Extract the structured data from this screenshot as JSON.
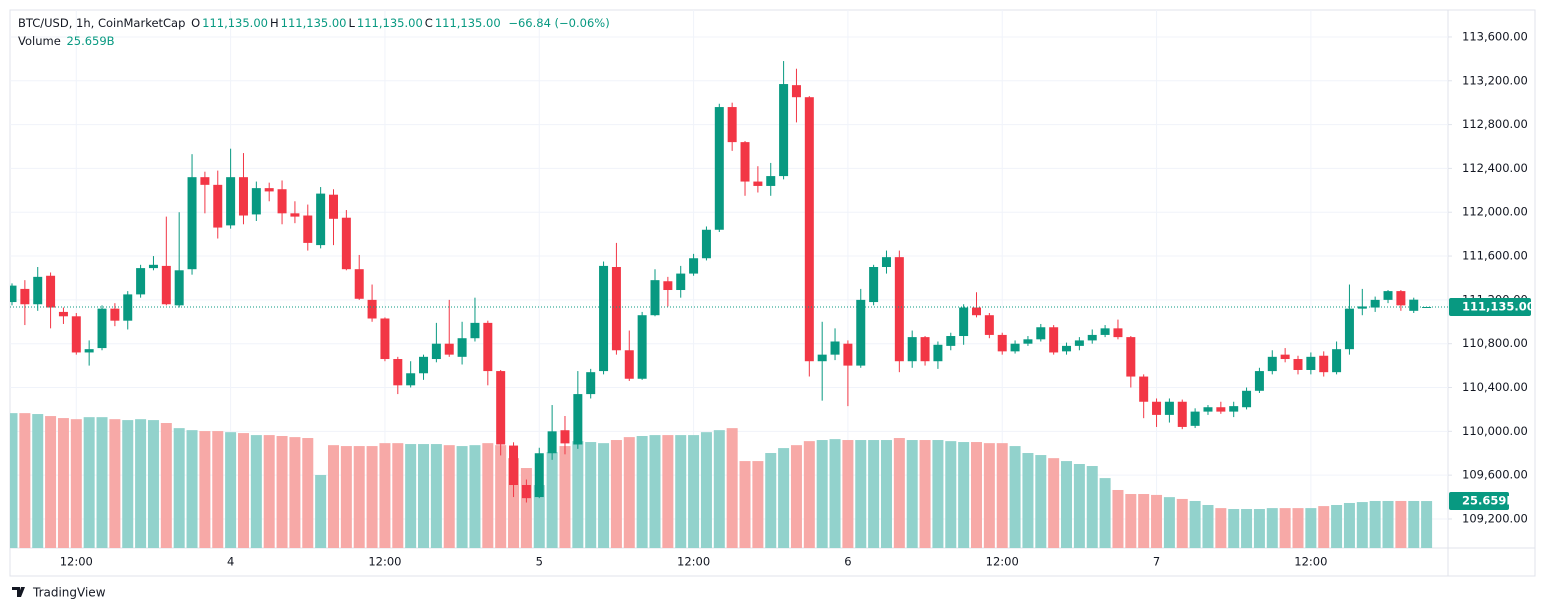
{
  "chart_data": {
    "type": "candlestick",
    "title": "BTC/USD, 1h, CoinMarketCap",
    "ohlc_legend": [
      {
        "key": "O",
        "label": "111,135.00"
      },
      {
        "key": "H",
        "label": "111,135.00"
      },
      {
        "key": "L",
        "label": "111,135.00"
      },
      {
        "key": "C",
        "label": "111,135.00"
      }
    ],
    "change_label": "−66.84 (−0.06%)",
    "categories": [
      null,
      null,
      null,
      null,
      null,
      "12:00",
      null,
      null,
      null,
      null,
      null,
      null,
      null,
      null,
      null,
      null,
      null,
      "4",
      null,
      null,
      null,
      null,
      null,
      null,
      null,
      null,
      null,
      null,
      null,
      "12:00",
      null,
      null,
      null,
      null,
      null,
      null,
      null,
      null,
      null,
      null,
      null,
      "5",
      null,
      null,
      null,
      null,
      null,
      null,
      null,
      null,
      null,
      null,
      null,
      "12:00",
      null,
      null,
      null,
      null,
      null,
      null,
      null,
      null,
      null,
      null,
      null,
      "6",
      null,
      null,
      null,
      null,
      null,
      null,
      null,
      null,
      null,
      null,
      null,
      "12:00",
      null,
      null,
      null,
      null,
      null,
      null,
      null,
      null,
      null,
      null,
      null,
      "7",
      null,
      null,
      null,
      null,
      null,
      null,
      null,
      null,
      null,
      null,
      null,
      "12:00",
      null,
      null,
      null,
      null,
      null,
      null,
      null,
      null,
      null
    ],
    "open": [
      111180,
      111300,
      111160,
      111420,
      111090,
      111050,
      110720,
      110760,
      111120,
      111010,
      111250,
      111490,
      111510,
      111150,
      111480,
      112320,
      112250,
      111880,
      112320,
      111980,
      112220,
      112210,
      111990,
      111970,
      111700,
      112160,
      111950,
      111480,
      111200,
      111030,
      110660,
      110420,
      110530,
      110660,
      110800,
      110680,
      110850,
      110990,
      110550,
      109870,
      109510,
      109400,
      109800,
      110010,
      109880,
      110340,
      110550,
      111500,
      110740,
      110480,
      111060,
      111370,
      111290,
      111440,
      111580,
      111840,
      112960,
      112640,
      112280,
      112240,
      112330,
      113160,
      113050,
      110640,
      110700,
      110800,
      110600,
      111180,
      111500,
      111590,
      110640,
      110860,
      110640,
      110780,
      110870,
      111130,
      111060,
      110880,
      110730,
      110800,
      110840,
      110950,
      110730,
      110780,
      110830,
      110880,
      110940,
      110860,
      110500,
      110270,
      110150,
      110270,
      110050,
      110180,
      110220,
      110180,
      110220,
      110370,
      110550,
      110700,
      110660,
      110560,
      110690,
      110540,
      110750,
      111120,
      111130,
      111200,
      111280,
      111100,
      111135
    ],
    "high": [
      111350,
      111380,
      111500,
      111450,
      111130,
      111080,
      110830,
      111150,
      111170,
      111280,
      111520,
      111600,
      111960,
      112000,
      112530,
      112370,
      112380,
      112580,
      112540,
      112280,
      112270,
      112290,
      112100,
      112070,
      112230,
      112210,
      112020,
      111610,
      111340,
      111040,
      110680,
      110640,
      110700,
      110990,
      111200,
      111000,
      111220,
      111010,
      110560,
      109900,
      109560,
      109850,
      110240,
      110140,
      110550,
      110570,
      111550,
      111720,
      110920,
      111090,
      111480,
      111410,
      111510,
      111620,
      111870,
      112990,
      113000,
      112650,
      112420,
      112450,
      113380,
      113310,
      113060,
      111000,
      110940,
      110830,
      111300,
      111520,
      111650,
      111650,
      110920,
      110870,
      110820,
      110900,
      111160,
      111270,
      111080,
      110900,
      110830,
      110870,
      110980,
      110970,
      110810,
      110860,
      110930,
      110970,
      111020,
      110870,
      110520,
      110300,
      110300,
      110290,
      110210,
      110240,
      110270,
      110270,
      110400,
      110580,
      110740,
      110760,
      110690,
      110720,
      110730,
      110820,
      111340,
      111300,
      111230,
      111290,
      111290,
      111220,
      111135
    ],
    "low": [
      111150,
      110970,
      111100,
      110940,
      110980,
      110700,
      110600,
      110740,
      110960,
      110930,
      111220,
      111470,
      111150,
      111130,
      111430,
      111990,
      111760,
      111850,
      111890,
      111920,
      112100,
      111890,
      111900,
      111650,
      111670,
      111700,
      111470,
      111200,
      111000,
      110640,
      110340,
      110400,
      110470,
      110630,
      110680,
      110610,
      110820,
      110420,
      109780,
      109400,
      109350,
      109390,
      109740,
      109790,
      109840,
      110300,
      110520,
      110700,
      110460,
      110470,
      111050,
      111140,
      111220,
      111420,
      111560,
      111820,
      112560,
      112150,
      112180,
      112150,
      112300,
      112820,
      110500,
      110280,
      110650,
      110230,
      110580,
      111150,
      111440,
      110540,
      110580,
      110600,
      110570,
      110740,
      110790,
      111040,
      110850,
      110700,
      110710,
      110780,
      110820,
      110700,
      110700,
      110740,
      110800,
      110860,
      110840,
      110400,
      110120,
      110040,
      110080,
      110020,
      110030,
      110150,
      110160,
      110130,
      110200,
      110350,
      110520,
      110630,
      110520,
      110520,
      110500,
      110520,
      110700,
      111060,
      111090,
      111170,
      111100,
      111080,
      111135
    ],
    "close": [
      111330,
      111160,
      111410,
      111130,
      111050,
      110720,
      110750,
      111120,
      111010,
      111250,
      111490,
      111520,
      111160,
      111470,
      112320,
      112250,
      111860,
      112320,
      111970,
      112220,
      112190,
      111990,
      111960,
      111720,
      112170,
      111940,
      111480,
      111210,
      111030,
      110660,
      110420,
      110530,
      110680,
      110800,
      110700,
      110850,
      110990,
      110550,
      109880,
      109510,
      109390,
      109800,
      110000,
      109890,
      110340,
      110540,
      111510,
      110740,
      110480,
      111060,
      111380,
      111290,
      111440,
      111580,
      111840,
      112960,
      112640,
      112280,
      112240,
      112330,
      113170,
      113050,
      110640,
      110700,
      110820,
      110600,
      111200,
      111500,
      111590,
      110640,
      110860,
      110640,
      110790,
      110870,
      111130,
      111060,
      110880,
      110730,
      110800,
      110840,
      110950,
      110720,
      110780,
      110830,
      110880,
      110940,
      110860,
      110500,
      110270,
      110150,
      110270,
      110040,
      110180,
      110220,
      110180,
      110230,
      110370,
      110550,
      110680,
      110660,
      110560,
      110680,
      110540,
      110750,
      111120,
      111140,
      111200,
      111280,
      111150,
      111201.84,
      111135
    ],
    "up_color": "#089981",
    "down_color": "#f23645",
    "volume": {
      "name": "Volume",
      "last_label": "25.659B",
      "up_color": "#92d2cc",
      "down_color": "#f7a9a7",
      "values": [
        73.7,
        73.7,
        73.2,
        72.1,
        71.0,
        70.4,
        71.5,
        71.5,
        70.4,
        69.9,
        70.4,
        69.9,
        68.3,
        65.5,
        64.4,
        63.9,
        63.9,
        63.3,
        62.8,
        61.7,
        61.7,
        61.2,
        60.6,
        60.1,
        39.9,
        56.2,
        55.7,
        55.7,
        55.7,
        57.3,
        57.3,
        56.8,
        56.8,
        56.8,
        56.2,
        55.7,
        56.2,
        57.3,
        56.2,
        49.1,
        43.7,
        34.4,
        52.4,
        55.7,
        58.4,
        57.9,
        57.3,
        59.0,
        60.6,
        61.2,
        61.7,
        61.7,
        61.7,
        61.7,
        63.3,
        64.4,
        65.5,
        47.5,
        47.5,
        51.9,
        54.6,
        56.2,
        58.4,
        59.0,
        59.5,
        59.0,
        59.0,
        59.0,
        59.0,
        60.1,
        59.0,
        59.0,
        59.0,
        58.4,
        57.9,
        57.9,
        57.3,
        57.3,
        55.7,
        51.9,
        50.8,
        49.1,
        47.5,
        45.9,
        44.8,
        38.2,
        31.7,
        29.5,
        29.5,
        29.0,
        27.8,
        26.8,
        25.7,
        23.5,
        21.8,
        21.3,
        21.3,
        21.3,
        21.8,
        21.8,
        21.8,
        21.8,
        22.9,
        23.5,
        24.6,
        25.1,
        25.7,
        25.7,
        25.7,
        25.7,
        25.659
      ]
    },
    "last_price": {
      "value": 111135,
      "label": "111,135.00"
    },
    "ylim": [
      108935,
      113846
    ],
    "yticks": [
      {
        "value": 109200,
        "label": "109,200.00"
      },
      {
        "value": 109600,
        "label": "109,600.00"
      },
      {
        "value": 110000,
        "label": "110,000.00"
      },
      {
        "value": 110400,
        "label": "110,400.00"
      },
      {
        "value": 110800,
        "label": "110,800.00"
      },
      {
        "value": 111200,
        "label": "111,200.00"
      },
      {
        "value": 111600,
        "label": "111,600.00"
      },
      {
        "value": 112000,
        "label": "112,000.00"
      },
      {
        "value": 112400,
        "label": "112,400.00"
      },
      {
        "value": 112800,
        "label": "112,800.00"
      },
      {
        "value": 113200,
        "label": "113,200.00"
      },
      {
        "value": 113600,
        "label": "113,600.00"
      }
    ],
    "grid": true
  },
  "footer": {
    "brand": "TradingView"
  }
}
